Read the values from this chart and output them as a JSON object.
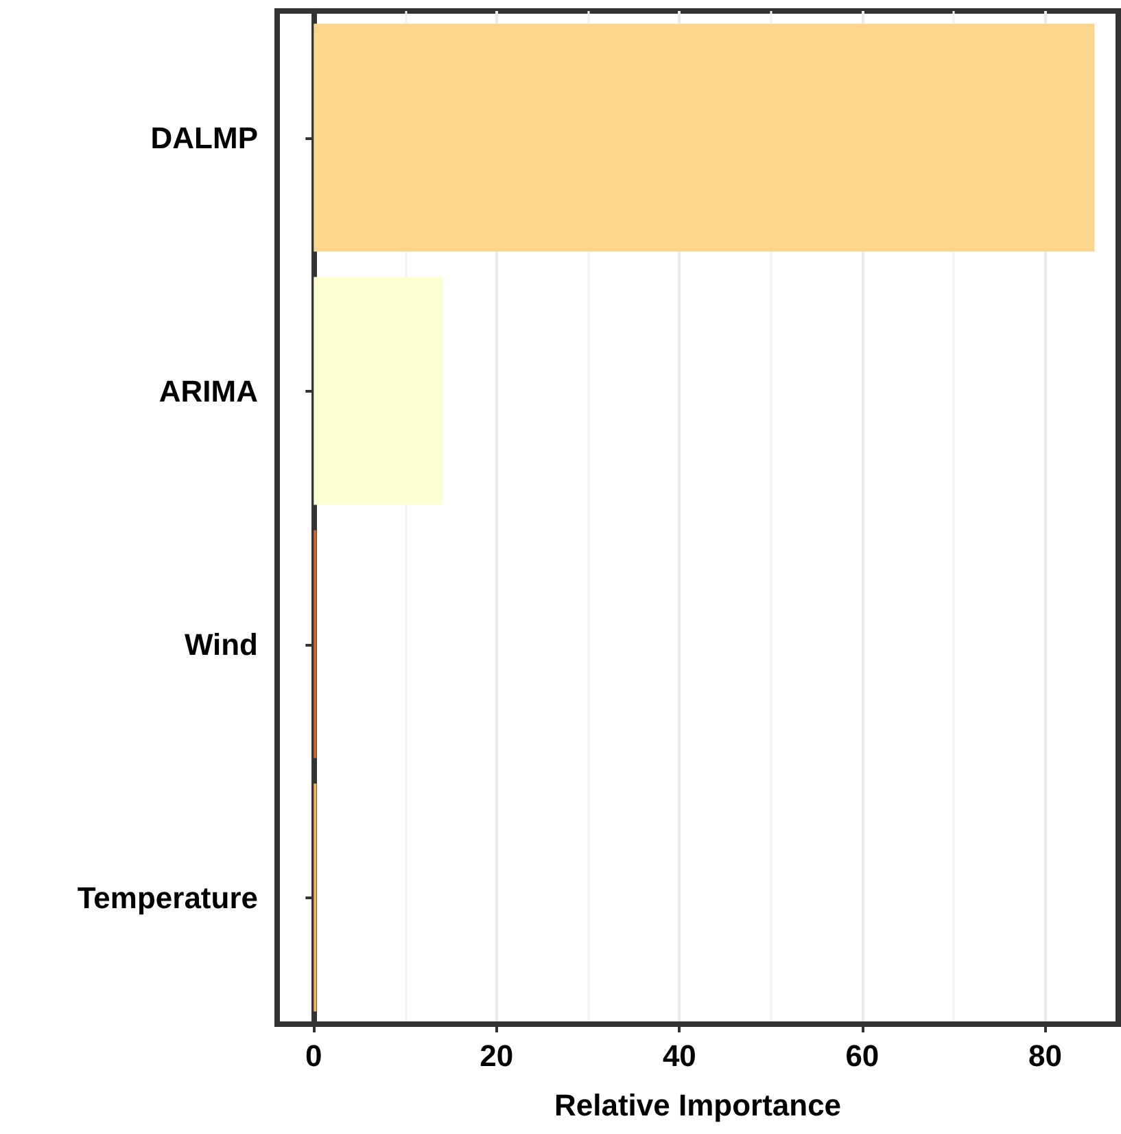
{
  "chart_data": {
    "type": "bar",
    "orientation": "horizontal",
    "xlabel": "Relative Importance",
    "categories": [
      "DALMP",
      "ARIMA",
      "Wind",
      "Temperature"
    ],
    "values": [
      85.4,
      14.1,
      0.3,
      0.3
    ],
    "colors": [
      "#fdd58c",
      "#ffffd4",
      "#d7662a",
      "#fdb25a"
    ],
    "xlim": [
      -4,
      88
    ],
    "xticks": [
      0,
      20,
      40,
      60,
      80
    ],
    "grid": "x"
  }
}
